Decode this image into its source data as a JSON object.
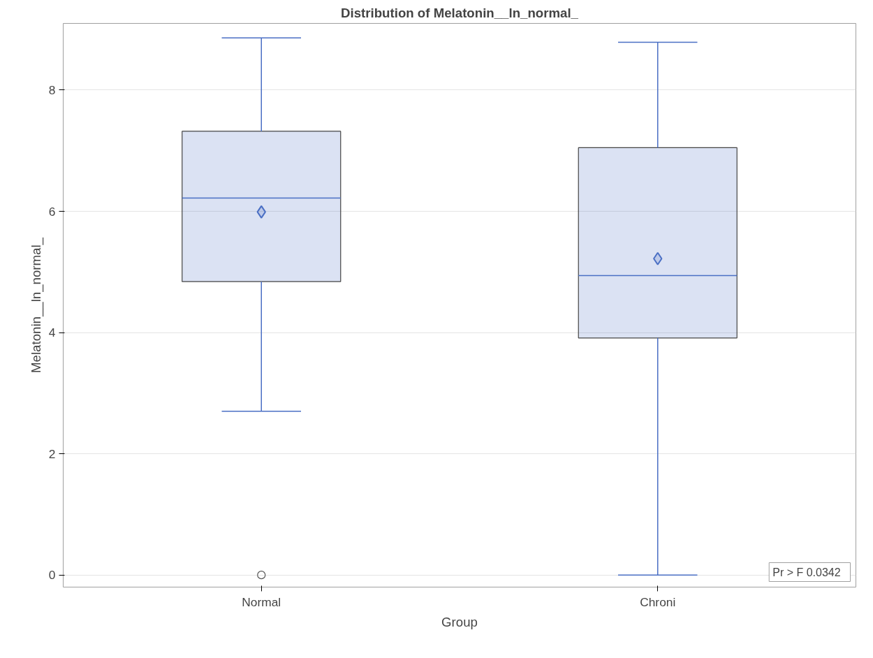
{
  "chart_data": {
    "type": "box",
    "title": "Distribution of Melatonin__ln_normal_",
    "xlabel": "Group",
    "ylabel": "Melatonin__ln_normal_",
    "categories": [
      "Normal",
      "Chroni"
    ],
    "series": [
      {
        "color": "#4a6fc4",
        "boxes": [
          {
            "low": 2.7,
            "q1": 4.84,
            "median": 6.22,
            "q3": 7.32,
            "high": 8.86,
            "mean": 5.99,
            "outliers": [
              0
            ]
          },
          {
            "low": 0,
            "q1": 3.91,
            "median": 4.94,
            "q3": 7.05,
            "high": 8.79,
            "mean": 5.22
          }
        ]
      }
    ],
    "ylim": [
      -0.2,
      9.1
    ],
    "yticks": [
      0,
      2,
      4,
      6,
      8
    ],
    "grid": "y",
    "marker": "diamond",
    "annotations": [
      "Pr > F   0.0342"
    ]
  }
}
